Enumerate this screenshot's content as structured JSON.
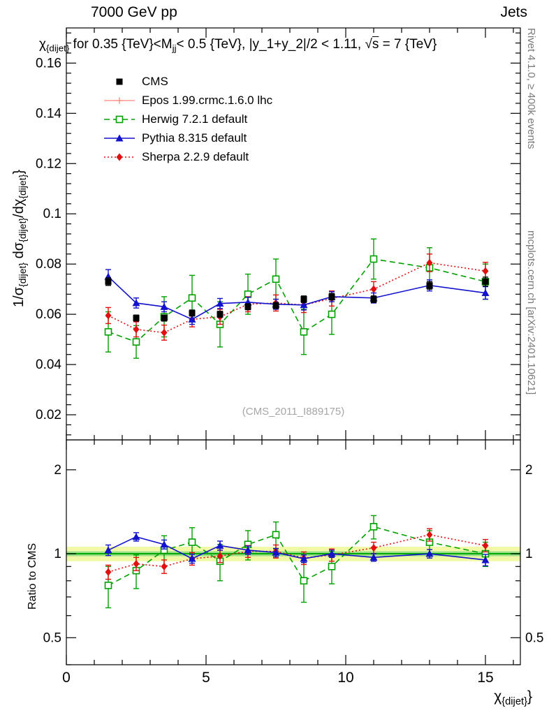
{
  "header": {
    "left": "7000 GeV pp",
    "right": "Jets"
  },
  "side_notes": {
    "rivet": "Rivet 4.1.0, ≥ 400k events",
    "mcplots": "mcplots.cern.ch [arXiv:2401.10621]"
  },
  "watermark": "(CMS_2011_I889175)",
  "labels": {
    "title_segments": [
      {
        "t": "χ"
      },
      {
        "t": "{dijet}",
        "sub": true
      },
      {
        "t": " for 0.35 {TeV}<M"
      },
      {
        "t": "jj",
        "sub": true
      },
      {
        "t": "< 0.5 {TeV}, |y_1+y_2|/2 < 1.11, "
      },
      {
        "t": "√"
      },
      {
        "t": "s",
        "ov": true
      },
      {
        "t": " = 7 {TeV}"
      }
    ],
    "y_main_segments": [
      {
        "t": "1/σ"
      },
      {
        "t": "{dijet}",
        "sub": true
      },
      {
        "t": " dσ"
      },
      {
        "t": "{dijet}",
        "sub": true
      },
      {
        "t": "/dχ"
      },
      {
        "t": "{dijet}",
        "sub": true
      },
      {
        "t": "}"
      }
    ],
    "x_segments": [
      {
        "t": "χ"
      },
      {
        "t": "{dijet}",
        "sub": true
      },
      {
        "t": "}"
      }
    ],
    "ratio_label": "Ratio to CMS"
  },
  "chart_data": {
    "type": "line",
    "title": "χ_{dijet} for 0.35 {TeV}<M_jj< 0.5 {TeV}, |y_1+y_2|/2 < 1.11, √s = 7 {TeV}",
    "x_label": "χ_{dijet}",
    "y_label": "1/σ_{dijet} dσ_{dijet}/dχ_{dijet}",
    "y_label_ratio": "Ratio to CMS",
    "legend_position": "top-left",
    "x": [
      1.5,
      2.5,
      3.5,
      4.5,
      5.5,
      6.5,
      7.5,
      8.5,
      9.5,
      11,
      13,
      15
    ],
    "series": [
      {
        "name": "CMS",
        "slug": "cms",
        "color": "#000000",
        "marker": "square-filled",
        "line": "none",
        "values": [
          0.073,
          0.0585,
          0.0585,
          0.0605,
          0.06,
          0.063,
          0.0635,
          0.066,
          0.067,
          0.066,
          0.0715,
          0.073
        ],
        "errors": [
          0.0015,
          0.0012,
          0.0012,
          0.0012,
          0.0012,
          0.0012,
          0.0012,
          0.0013,
          0.0013,
          0.0013,
          0.0015,
          0.0018
        ],
        "ratio": [],
        "ratio_errors": []
      },
      {
        "name": "Epos 1.99.crmc.1.6.0 lhc",
        "slug": "epos",
        "color": "#ff9793",
        "marker": "cross-open",
        "line": "solid",
        "values": [],
        "errors": [],
        "ratio": [],
        "ratio_errors": []
      },
      {
        "name": "Herwig 7.2.1 default",
        "slug": "herwig",
        "color": "#00a000",
        "marker": "square-open",
        "line": "dashed",
        "values": [
          0.053,
          0.049,
          0.059,
          0.0665,
          0.056,
          0.068,
          0.074,
          0.053,
          0.06,
          0.082,
          0.0785,
          0.073
        ],
        "errors": [
          0.008,
          0.0065,
          0.008,
          0.009,
          0.009,
          0.008,
          0.008,
          0.009,
          0.008,
          0.008,
          0.008,
          0.007
        ],
        "ratio": [
          0.77,
          0.87,
          1.03,
          1.1,
          0.94,
          1.08,
          1.17,
          0.8,
          0.9,
          1.25,
          1.1,
          1.0
        ],
        "ratio_errors": [
          0.13,
          0.12,
          0.13,
          0.14,
          0.14,
          0.13,
          0.13,
          0.13,
          0.12,
          0.12,
          0.11,
          0.1
        ]
      },
      {
        "name": "Pythia 8.315 default",
        "slug": "pythia",
        "color": "#1212cc",
        "marker": "triangle-filled",
        "line": "solid",
        "values": [
          0.075,
          0.0645,
          0.063,
          0.058,
          0.0643,
          0.0648,
          0.064,
          0.0637,
          0.067,
          0.0665,
          0.0715,
          0.0685
        ],
        "errors": [
          0.0028,
          0.002,
          0.002,
          0.002,
          0.002,
          0.002,
          0.002,
          0.002,
          0.002,
          0.002,
          0.0022,
          0.0025
        ],
        "ratio": [
          1.03,
          1.15,
          1.08,
          0.96,
          1.07,
          1.03,
          1.01,
          0.96,
          1.0,
          0.97,
          1.0,
          0.95
        ],
        "ratio_errors": [
          0.045,
          0.04,
          0.04,
          0.035,
          0.04,
          0.035,
          0.035,
          0.03,
          0.03,
          0.03,
          0.035,
          0.045
        ]
      },
      {
        "name": "Sherpa 2.2.9 default",
        "slug": "sherpa",
        "color": "#e01010",
        "marker": "diamond-filled",
        "line": "dotted",
        "values": [
          0.0595,
          0.054,
          0.0527,
          0.058,
          0.059,
          0.064,
          0.0645,
          0.0637,
          0.0663,
          0.07,
          0.0805,
          0.0772
        ],
        "errors": [
          0.0032,
          0.003,
          0.003,
          0.003,
          0.003,
          0.003,
          0.0032,
          0.003,
          0.003,
          0.003,
          0.0035,
          0.0035
        ],
        "ratio": [
          0.86,
          0.92,
          0.9,
          0.96,
          0.98,
          1.02,
          1.02,
          0.965,
          0.99,
          1.05,
          1.17,
          1.07
        ],
        "ratio_errors": [
          0.05,
          0.05,
          0.05,
          0.05,
          0.05,
          0.05,
          0.055,
          0.05,
          0.05,
          0.05,
          0.06,
          0.055
        ]
      }
    ],
    "axes": {
      "x": {
        "min": 0,
        "max": 16.25,
        "major_ticks": [
          0,
          5,
          10,
          15
        ],
        "tick_labels": [
          "0",
          "5",
          "10",
          "15"
        ],
        "minor_step": 1
      },
      "y_main": {
        "min": 0.01,
        "max": 0.174,
        "scale": "linear",
        "major_ticks": [
          0.02,
          0.04,
          0.06,
          0.08,
          0.1,
          0.12,
          0.14,
          0.16
        ],
        "tick_labels": [
          "0.02",
          "0.04",
          "0.06",
          "0.08",
          "0.1",
          "0.12",
          "0.14",
          "0.16"
        ],
        "minor_step": 0.004
      },
      "y_ratio": {
        "min": 0.4,
        "max": 2.56,
        "scale": "log",
        "major_ticks": [
          0.5,
          1,
          2
        ],
        "tick_labels": [
          "0.5",
          "1",
          "2"
        ],
        "minor_ticks": [
          0.4,
          0.6,
          0.7,
          0.8,
          0.9
        ]
      }
    },
    "ratio_band": {
      "low": 0.94,
      "high": 1.06,
      "color": "#f2f9a6",
      "inner_low": 0.98,
      "inner_high": 1.02,
      "inner_color": "#9ade87",
      "center": 1,
      "center_color": "#00aa00"
    }
  }
}
